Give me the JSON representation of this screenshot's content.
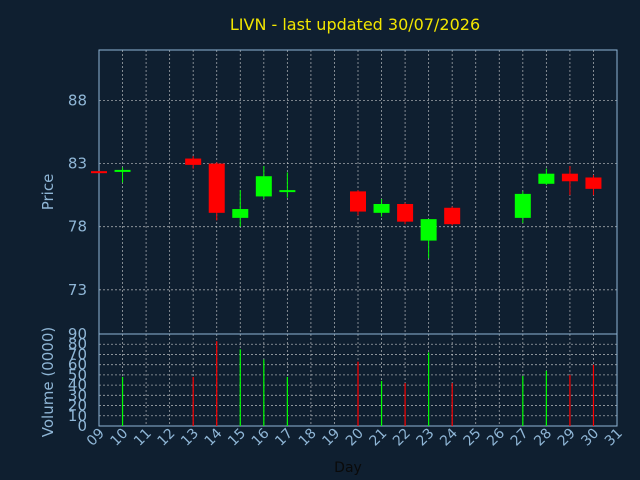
{
  "title": "LIVN - last updated 30/07/2026",
  "colors": {
    "background": "#0f1f30",
    "up": "#00ff00",
    "down": "#ff0000",
    "title": "#f2e600",
    "axis_text": "#8fb6d6",
    "grid": "#dddddd",
    "frame": "#8fb6d6"
  },
  "chart_data": [
    {
      "type": "candlestick",
      "title": "LIVN - last updated 30/07/2026",
      "ylabel": "Price",
      "ylim": [
        69.5,
        92
      ],
      "yticks": [
        73,
        78,
        83,
        88
      ],
      "grid": true,
      "candles": [
        {
          "day": 9,
          "open": 82.4,
          "high": 82.4,
          "low": 82.3,
          "close": 82.3
        },
        {
          "day": 10,
          "open": 82.4,
          "high": 82.7,
          "low": 81.5,
          "close": 82.5
        },
        {
          "day": 13,
          "open": 83.4,
          "high": 83.6,
          "low": 82.6,
          "close": 82.9
        },
        {
          "day": 14,
          "open": 83.0,
          "high": 83.1,
          "low": 78.5,
          "close": 79.1
        },
        {
          "day": 15,
          "open": 78.7,
          "high": 80.9,
          "low": 78.0,
          "close": 79.4
        },
        {
          "day": 16,
          "open": 80.4,
          "high": 82.8,
          "low": 80.2,
          "close": 82.0
        },
        {
          "day": 17,
          "open": 80.8,
          "high": 82.3,
          "low": 80.3,
          "close": 80.9
        },
        {
          "day": 20,
          "open": 80.8,
          "high": 80.9,
          "low": 78.9,
          "close": 79.2
        },
        {
          "day": 21,
          "open": 79.1,
          "high": 80.2,
          "low": 78.8,
          "close": 79.8
        },
        {
          "day": 22,
          "open": 79.8,
          "high": 79.9,
          "low": 78.2,
          "close": 78.4
        },
        {
          "day": 23,
          "open": 76.9,
          "high": 78.6,
          "low": 75.5,
          "close": 78.6
        },
        {
          "day": 24,
          "open": 79.5,
          "high": 79.6,
          "low": 78.1,
          "close": 78.2
        },
        {
          "day": 27,
          "open": 78.7,
          "high": 80.8,
          "low": 78.3,
          "close": 80.6
        },
        {
          "day": 28,
          "open": 81.4,
          "high": 82.6,
          "low": 81.3,
          "close": 82.2
        },
        {
          "day": 29,
          "open": 82.2,
          "high": 82.8,
          "low": 80.5,
          "close": 81.6
        },
        {
          "day": 30,
          "open": 81.9,
          "high": 82.1,
          "low": 80.5,
          "close": 81.0
        }
      ]
    },
    {
      "type": "bar",
      "ylabel": "Volume (0000)",
      "xlabel": "Day",
      "ylim": [
        0,
        90
      ],
      "yticks": [
        0,
        10,
        20,
        30,
        40,
        50,
        60,
        70,
        80,
        90
      ],
      "xticks": [
        "09",
        "10",
        "11",
        "12",
        "13",
        "14",
        "15",
        "16",
        "17",
        "18",
        "19",
        "20",
        "21",
        "22",
        "23",
        "24",
        "25",
        "26",
        "27",
        "28",
        "29",
        "30",
        "31"
      ],
      "volumes": [
        {
          "day": 10,
          "value": 48,
          "direction": "up"
        },
        {
          "day": 13,
          "value": 48,
          "direction": "down"
        },
        {
          "day": 14,
          "value": 83,
          "direction": "down"
        },
        {
          "day": 15,
          "value": 75,
          "direction": "up"
        },
        {
          "day": 16,
          "value": 65,
          "direction": "up"
        },
        {
          "day": 17,
          "value": 48,
          "direction": "up"
        },
        {
          "day": 20,
          "value": 63,
          "direction": "down"
        },
        {
          "day": 21,
          "value": 44,
          "direction": "up"
        },
        {
          "day": 22,
          "value": 42,
          "direction": "down"
        },
        {
          "day": 23,
          "value": 72,
          "direction": "up"
        },
        {
          "day": 24,
          "value": 42,
          "direction": "down"
        },
        {
          "day": 27,
          "value": 49,
          "direction": "up"
        },
        {
          "day": 28,
          "value": 54,
          "direction": "up"
        },
        {
          "day": 29,
          "value": 50,
          "direction": "down"
        },
        {
          "day": 30,
          "value": 60,
          "direction": "down"
        }
      ]
    }
  ]
}
